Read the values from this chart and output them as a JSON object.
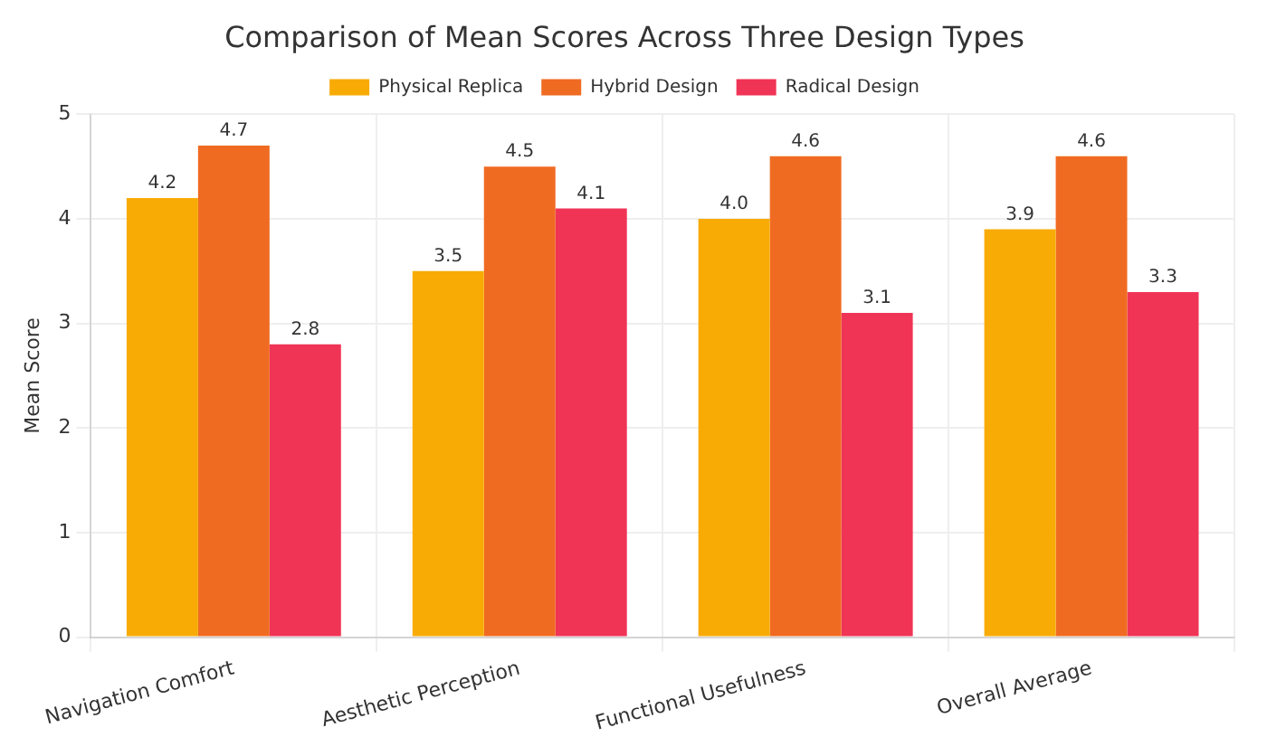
{
  "chart_data": {
    "type": "bar",
    "title": "Comparison of Mean Scores Across Three Design Types",
    "ylabel": "Mean Score",
    "categories": [
      "Navigation Comfort",
      "Aesthetic Perception",
      "Functional Usefulness",
      "Overall Average"
    ],
    "series": [
      {
        "name": "Physical Replica",
        "color": "#f8ab05",
        "values": [
          4.2,
          3.5,
          4.0,
          3.9
        ],
        "value_labels": [
          "4.2",
          "3.5",
          "4.0",
          "3.9"
        ]
      },
      {
        "name": "Hybrid Design",
        "color": "#f06b22",
        "values": [
          4.7,
          4.5,
          4.6,
          4.6
        ],
        "value_labels": [
          "4.7",
          "4.5",
          "4.6",
          "4.6"
        ]
      },
      {
        "name": "Radical Design",
        "color": "#f03456",
        "values": [
          2.8,
          4.1,
          3.1,
          3.3
        ],
        "value_labels": [
          "2.8",
          "4.1",
          "3.1",
          "3.3"
        ]
      }
    ],
    "ylim": [
      0,
      5
    ],
    "yticks": [
      0,
      1,
      2,
      3,
      4,
      5
    ],
    "grid": true,
    "legend": "top"
  }
}
